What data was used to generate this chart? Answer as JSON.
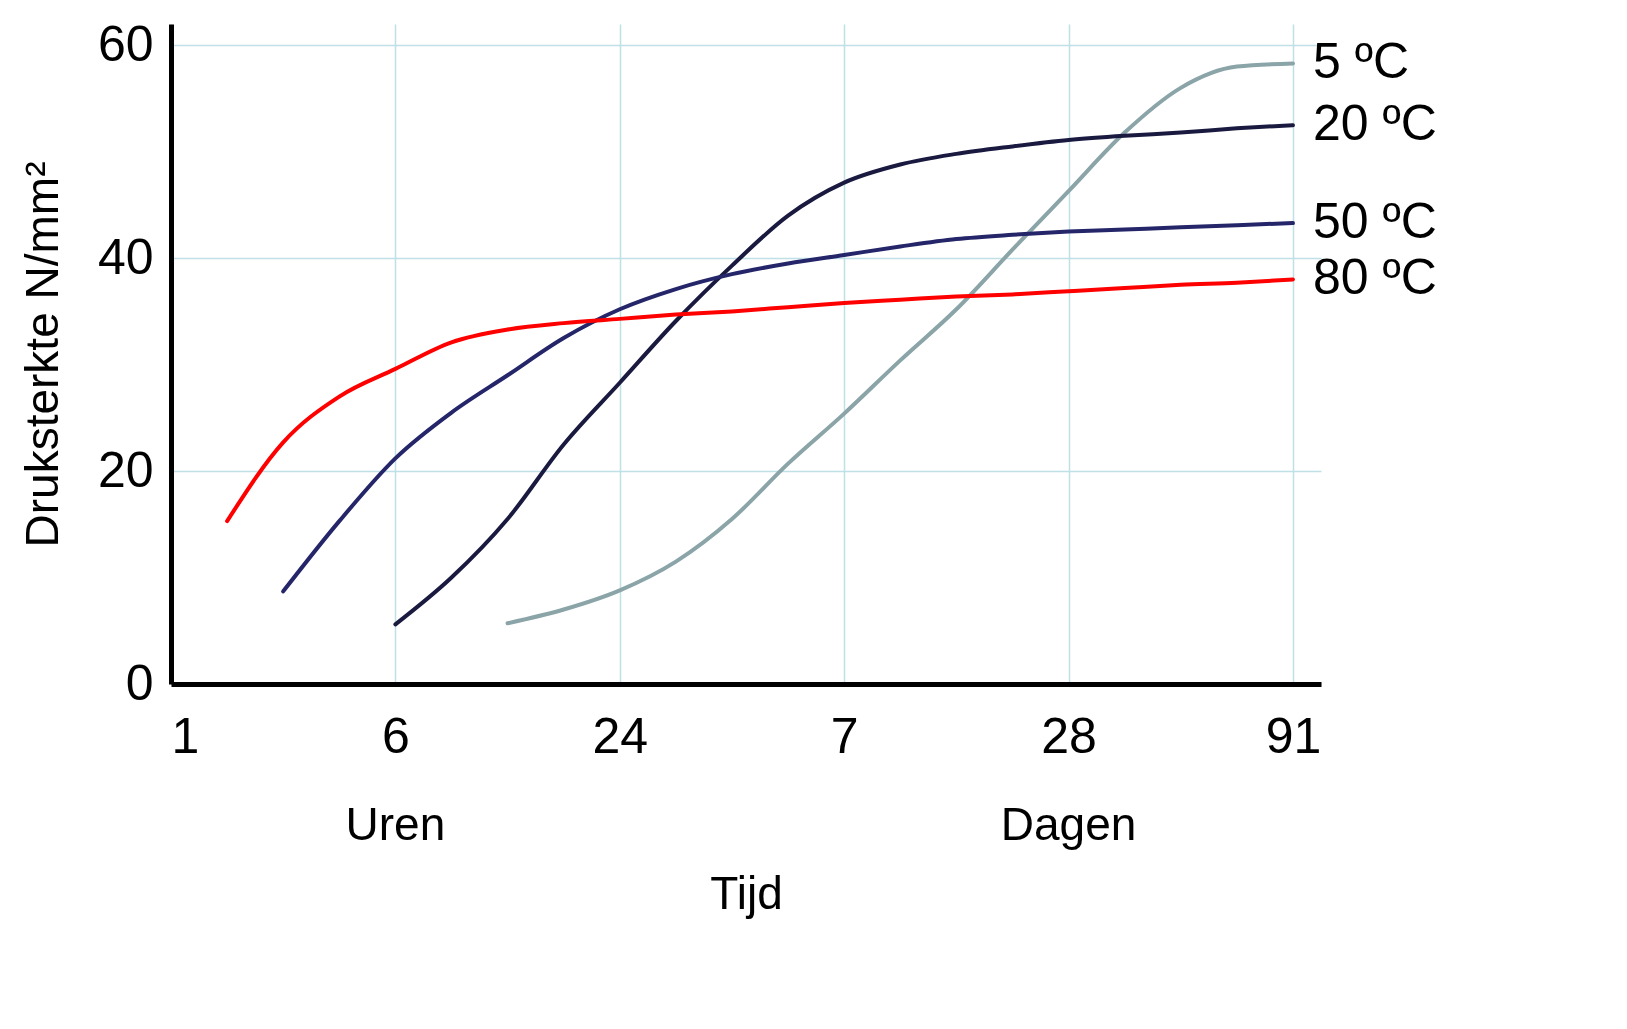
{
  "chart_data": {
    "type": "line",
    "ylabel": "Druksterkte N/mm²",
    "xlabel": "Tijd",
    "categories": [
      "1",
      null,
      null,
      null,
      "6",
      null,
      null,
      null,
      "24",
      null,
      null,
      null,
      "7",
      null,
      null,
      null,
      "28",
      null,
      null,
      null,
      "91"
    ],
    "ylim": [
      0,
      62
    ],
    "yticks": [
      0,
      20,
      40,
      60
    ],
    "grid": true,
    "legend": false,
    "annotations": [
      "Uren",
      "Dagen"
    ],
    "series": [
      {
        "name": "5 ºC",
        "color": "#8aa4a8",
        "values": [
          null,
          null,
          null,
          null,
          null,
          null,
          5.7,
          7,
          8.8,
          11.5,
          15.5,
          20.7,
          25.4,
          30.4,
          35.2,
          40.8,
          46.3,
          51.8,
          56,
          58,
          58.3
        ]
      },
      {
        "name": "20 ºC",
        "color": "#1a1a40",
        "values": [
          null,
          null,
          null,
          null,
          5.6,
          10,
          15.5,
          22.5,
          28.3,
          34.1,
          39.3,
          44,
          47.1,
          48.8,
          49.8,
          50.5,
          51.1,
          51.5,
          51.8,
          52.2,
          52.5
        ]
      },
      {
        "name": "50 ºC",
        "color": "#25256a",
        "values": [
          null,
          null,
          8.7,
          15.3,
          21.2,
          25.5,
          29,
          32.5,
          35.2,
          37.1,
          38.5,
          39.5,
          40.3,
          41.1,
          41.8,
          42.2,
          42.5,
          42.7,
          42.9,
          43.1,
          43.3
        ]
      },
      {
        "name": "80 ºC",
        "color": "#ff0000",
        "values": [
          null,
          15.3,
          22.7,
          27,
          29.6,
          32.1,
          33.3,
          33.9,
          34.3,
          34.7,
          35,
          35.4,
          35.8,
          36.1,
          36.4,
          36.6,
          36.9,
          37.2,
          37.5,
          37.7,
          38
        ]
      }
    ]
  }
}
